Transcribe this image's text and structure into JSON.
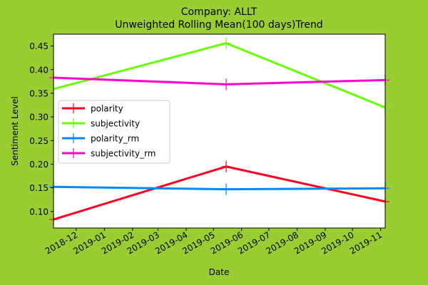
{
  "chart_data": {
    "type": "line",
    "title_line1": "Company: ALLT",
    "title_line2": "Unweighted Rolling Mean(100 days)Trend",
    "xlabel": "Date",
    "ylabel": "Sentiment Level",
    "x_range": [
      "2018-11-06",
      "2019-11-06"
    ],
    "ylim": [
      0.065,
      0.475
    ],
    "x_tick_labels": [
      "2018-12",
      "2019-01",
      "2019-02",
      "2019-03",
      "2019-04",
      "2019-05",
      "2019-06",
      "2019-07",
      "2019-08",
      "2019-09",
      "2019-10",
      "2019-11"
    ],
    "y_tick_labels": [
      "0.10",
      "0.15",
      "0.20",
      "0.25",
      "0.30",
      "0.35",
      "0.40",
      "0.45"
    ],
    "grid": false,
    "legend_position": "center-left",
    "series": [
      {
        "name": "polarity",
        "color": "#FF0022",
        "x": [
          "2018-11-06",
          "2019-05-15",
          "2019-11-06"
        ],
        "values": [
          0.083,
          0.195,
          0.121
        ]
      },
      {
        "name": "subjectivity",
        "color": "#66FF00",
        "x": [
          "2018-11-06",
          "2019-05-15",
          "2019-11-06"
        ],
        "values": [
          0.359,
          0.456,
          0.32
        ]
      },
      {
        "name": "polarity_rm",
        "color": "#0088FF",
        "x": [
          "2018-11-06",
          "2019-05-15",
          "2019-11-06"
        ],
        "values": [
          0.152,
          0.147,
          0.149
        ]
      },
      {
        "name": "subjectivity_rm",
        "color": "#FF00CC",
        "x": [
          "2018-11-06",
          "2019-05-15",
          "2019-11-06"
        ],
        "values": [
          0.383,
          0.369,
          0.378
        ]
      }
    ]
  }
}
